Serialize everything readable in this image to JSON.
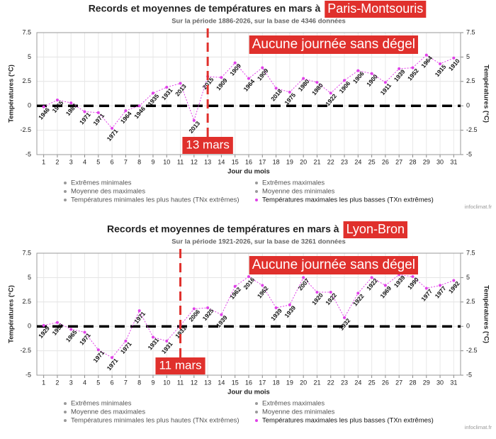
{
  "chart_data": [
    {
      "type": "line",
      "title": "Records et moyennes de températures en mars à",
      "station": "Paris-Montsouris",
      "subtitle": "Sur la période 1886-2026, sur la base de 4346 données",
      "x_label": "Jour du mois",
      "y_label": "Températures (°C)",
      "y2_label": "Températures (°C)",
      "annotation": "Aucune journée sans dégel",
      "marker": {
        "x": 13,
        "label": "13 mars"
      },
      "threshold": 0,
      "watermark": "infoclimat.fr",
      "grid": true,
      "xlim": [
        0.5,
        31.5
      ],
      "xticks": [
        1,
        2,
        3,
        4,
        5,
        6,
        7,
        8,
        9,
        10,
        11,
        12,
        13,
        14,
        15,
        16,
        17,
        18,
        19,
        20,
        21,
        22,
        23,
        24,
        25,
        26,
        27,
        28,
        29,
        30,
        31
      ],
      "ylim": [
        -5,
        7.5
      ],
      "yticks": [
        -5,
        -2.5,
        0,
        2.5,
        5,
        7.5
      ],
      "y2lim": [
        -5,
        7.5
      ],
      "y2ticks": [
        -5,
        -2.5,
        0,
        2.5,
        5,
        7.5
      ],
      "x": [
        1,
        2,
        3,
        4,
        5,
        6,
        7,
        8,
        9,
        10,
        11,
        12,
        13,
        14,
        15,
        16,
        17,
        18,
        19,
        20,
        21,
        22,
        23,
        24,
        25,
        26,
        27,
        28,
        29,
        30,
        31
      ],
      "series": [
        {
          "name": "Températures maximales les plus basses (TXn extrêmes)",
          "color": "#e040e8",
          "values": [
            -0.1,
            0.6,
            0.3,
            -0.6,
            -0.7,
            -2.3,
            -0.5,
            0.0,
            1.3,
            1.9,
            2.3,
            -1.5,
            3.0,
            2.9,
            4.4,
            2.8,
            3.9,
            1.8,
            1.4,
            2.8,
            2.4,
            1.3,
            2.6,
            3.6,
            3.3,
            2.4,
            3.8,
            3.9,
            5.2,
            4.3,
            4.9
          ],
          "years": [
            "1946",
            "1965",
            "1987",
            "1971",
            "1971",
            "1971",
            "1964",
            "1946",
            "1935",
            "1931",
            "2013",
            "2013",
            "2015",
            "1909",
            "1909",
            "1964",
            "1909",
            "2018",
            "1975",
            "1980",
            "1980",
            "1922",
            "1906",
            "1906",
            "1900",
            "1911",
            "1939",
            "1952",
            "1964",
            "1915",
            "1910"
          ]
        }
      ],
      "legend": [
        {
          "name": "Extrêmes minimales",
          "active": false
        },
        {
          "name": "Moyenne des maximales",
          "active": false
        },
        {
          "name": "Températures minimales les plus hautes (TNx extrêmes)",
          "active": false
        },
        {
          "name": "Extrêmes maximales",
          "active": false
        },
        {
          "name": "Moyenne des minimales",
          "active": false
        },
        {
          "name": "Températures maximales les plus basses (TXn extrêmes)",
          "active": true
        }
      ]
    },
    {
      "type": "line",
      "title": "Records et moyennes de températures en mars à",
      "station": "Lyon-Bron",
      "subtitle": "Sur la période 1921-2026, sur la base de 3261 données",
      "x_label": "Jour du mois",
      "y_label": "Températures (°C)",
      "y2_label": "Températures (°C)",
      "annotation": "Aucune journée sans dégel",
      "marker": {
        "x": 11,
        "label": "11 mars"
      },
      "threshold": 0,
      "watermark": "infoclimat.fr",
      "grid": true,
      "xlim": [
        0.5,
        31.5
      ],
      "xticks": [
        1,
        2,
        3,
        4,
        5,
        6,
        7,
        8,
        9,
        10,
        11,
        12,
        13,
        14,
        15,
        16,
        17,
        18,
        19,
        20,
        21,
        22,
        23,
        24,
        25,
        26,
        27,
        28,
        29,
        30,
        31
      ],
      "ylim": [
        -5,
        7.5
      ],
      "yticks": [
        -5,
        -2.5,
        0,
        2.5,
        5,
        7.5
      ],
      "y2lim": [
        -5,
        7.5
      ],
      "y2ticks": [
        -5,
        -2.5,
        0,
        2.5,
        5,
        7.5
      ],
      "x": [
        1,
        2,
        3,
        4,
        5,
        6,
        7,
        8,
        9,
        10,
        11,
        12,
        13,
        14,
        15,
        16,
        17,
        18,
        19,
        20,
        21,
        22,
        23,
        24,
        25,
        26,
        27,
        28,
        29,
        30,
        31
      ],
      "series": [
        {
          "name": "Températures maximales les plus basses (TXn extrêmes)",
          "color": "#e040e8",
          "values": [
            0.1,
            0.4,
            -0.3,
            -0.6,
            -2.4,
            -3.2,
            -1.5,
            1.6,
            -1.1,
            -1.5,
            0.1,
            1.8,
            1.9,
            1.2,
            4.1,
            5.1,
            4.2,
            1.9,
            2.2,
            5.0,
            3.5,
            3.5,
            0.9,
            3.4,
            5.0,
            4.2,
            5.3,
            5.1,
            3.9,
            4.2,
            4.7
          ],
          "years": [
            "1929",
            "1955",
            "1965",
            "1971",
            "1971",
            "1971",
            "1971",
            "1971",
            "1931",
            "1931",
            "1931",
            "2006",
            "1925",
            "1939",
            "1962",
            "2016",
            "1962",
            "1939",
            "1939",
            "2007",
            "1920",
            "1922",
            "1932",
            "1922",
            "1922",
            "1969",
            "1939",
            "1990",
            "1977",
            "1977",
            "1992"
          ]
        }
      ],
      "legend": [
        {
          "name": "Extrêmes minimales",
          "active": false
        },
        {
          "name": "Moyenne des maximales",
          "active": false
        },
        {
          "name": "Températures minimales les plus hautes (TNx extrêmes)",
          "active": false
        },
        {
          "name": "Extrêmes maximales",
          "active": false
        },
        {
          "name": "Moyenne des minimales",
          "active": false
        },
        {
          "name": "Températures maximales les plus basses (TXn extrêmes)",
          "active": true
        }
      ]
    }
  ]
}
